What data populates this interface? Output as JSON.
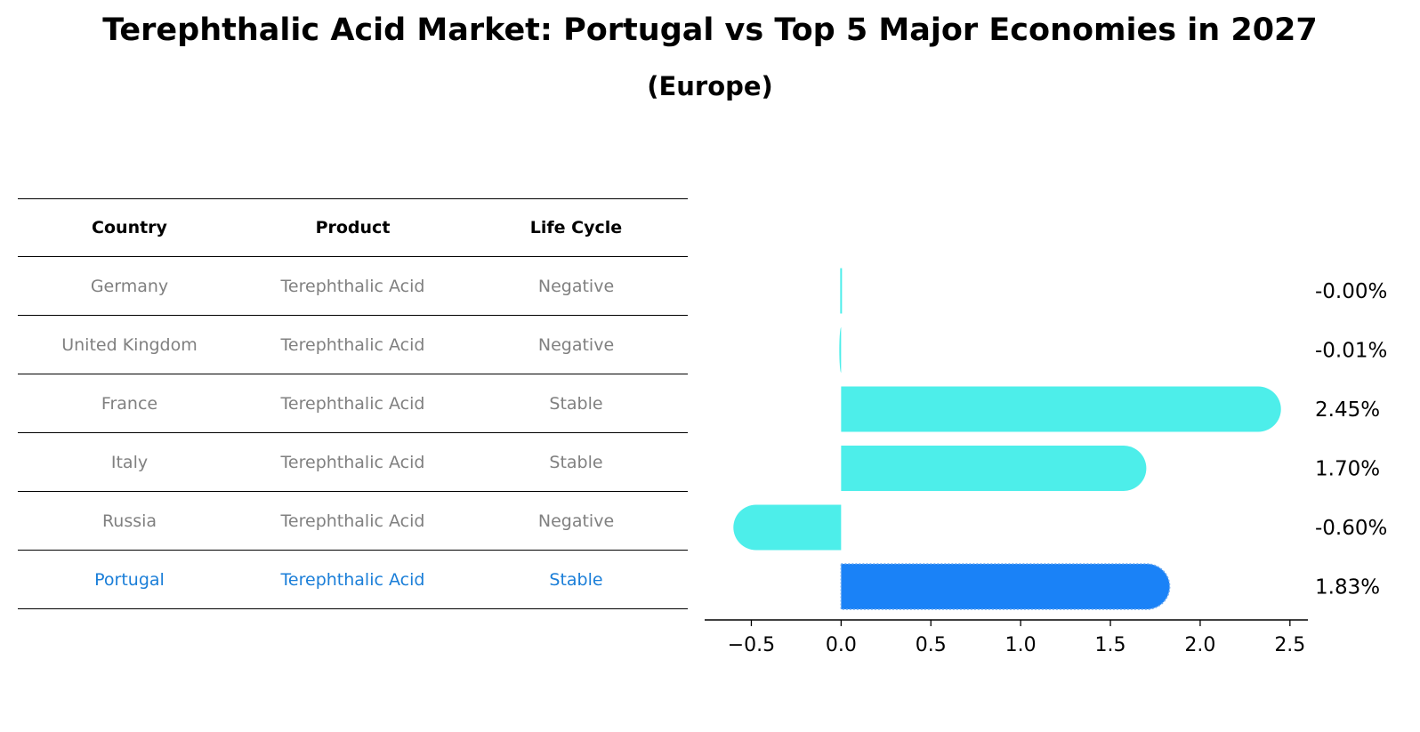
{
  "title": "Terephthalic Acid Market: Portugal vs Top 5 Major Economies in 2027",
  "subtitle": "(Europe)",
  "table": {
    "headers": [
      "Country",
      "Product",
      "Life Cycle"
    ],
    "rows": [
      {
        "country": "Germany",
        "product": "Terephthalic Acid",
        "life_cycle": "Negative"
      },
      {
        "country": "United Kingdom",
        "product": "Terephthalic Acid",
        "life_cycle": "Negative"
      },
      {
        "country": "France",
        "product": "Terephthalic Acid",
        "life_cycle": "Stable"
      },
      {
        "country": "Italy",
        "product": "Terephthalic Acid",
        "life_cycle": "Stable"
      },
      {
        "country": "Russia",
        "product": "Terephthalic Acid",
        "life_cycle": "Negative"
      },
      {
        "country": "Portugal",
        "product": "Terephthalic Acid",
        "life_cycle": "Stable"
      }
    ]
  },
  "chart_data": {
    "type": "bar",
    "orientation": "horizontal",
    "categories": [
      "Germany",
      "United Kingdom",
      "France",
      "Italy",
      "Russia",
      "Portugal"
    ],
    "values": [
      -0.0,
      -0.01,
      2.45,
      1.7,
      -0.6,
      1.83
    ],
    "value_labels": [
      "-0.00%",
      "-0.01%",
      "2.45%",
      "1.70%",
      "-0.60%",
      "1.83%"
    ],
    "highlight": "Portugal",
    "xlim": [
      -0.76,
      2.6
    ],
    "xticks": [
      -0.5,
      0.0,
      0.5,
      1.0,
      1.5,
      2.0,
      2.5
    ],
    "xtick_labels": [
      "−0.5",
      "0.0",
      "0.5",
      "1.0",
      "1.5",
      "2.0",
      "2.5"
    ],
    "colors": {
      "default": "#4deeea",
      "highlight": "#1a82f7"
    }
  }
}
